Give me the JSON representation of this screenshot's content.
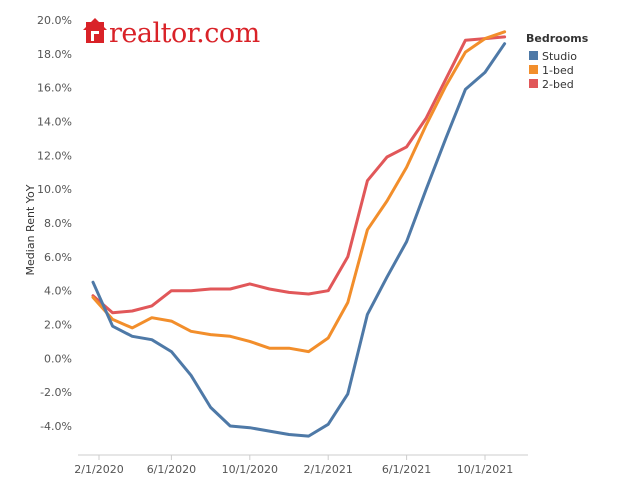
{
  "logo": {
    "text": "realtor.com",
    "color": "#d92228"
  },
  "chart_data": {
    "type": "line",
    "title": "",
    "xlabel": "",
    "ylabel": "Median Rent YoY",
    "x": [
      "2020-02-01",
      "2020-03-01",
      "2020-04-01",
      "2020-05-01",
      "2020-06-01",
      "2020-07-01",
      "2020-08-01",
      "2020-09-01",
      "2020-10-01",
      "2020-11-01",
      "2020-12-01",
      "2021-01-01",
      "2021-02-01",
      "2021-03-01",
      "2021-04-01",
      "2021-05-01",
      "2021-06-01",
      "2021-07-01",
      "2021-08-01",
      "2021-09-01",
      "2021-10-01",
      "2021-11-01",
      "2021-12-01"
    ],
    "x_ticks": [
      "2/1/2020",
      "6/1/2020",
      "10/1/2020",
      "2/1/2021",
      "6/1/2021",
      "10/1/2021"
    ],
    "y_ticks": [
      "-4.0%",
      "-2.0%",
      "0.0%",
      "2.0%",
      "4.0%",
      "6.0%",
      "8.0%",
      "10.0%",
      "12.0%",
      "14.0%",
      "16.0%",
      "18.0%",
      "20.0%"
    ],
    "ylim": [
      -4.8,
      20.3
    ],
    "y_unit": "%",
    "grid": false,
    "legend": {
      "title": "Bedrooms",
      "placement": "top-right"
    },
    "series": [
      {
        "name": "Studio",
        "color": "#4e79a7",
        "values": [
          4.5,
          1.9,
          1.3,
          1.1,
          0.4,
          -1.0,
          -2.9,
          -4.0,
          -4.1,
          -4.3,
          -4.5,
          -4.6,
          -3.9,
          -2.1,
          2.6,
          4.8,
          6.9,
          10.0,
          13.0,
          15.9,
          16.9,
          18.6,
          null
        ]
      },
      {
        "name": "1-bed",
        "color": "#f28e2b",
        "values": [
          3.6,
          2.3,
          1.8,
          2.4,
          2.2,
          1.6,
          1.4,
          1.3,
          1.0,
          0.6,
          0.6,
          0.4,
          1.2,
          3.3,
          7.6,
          9.3,
          11.3,
          13.8,
          16.1,
          18.1,
          18.9,
          19.3,
          null
        ]
      },
      {
        "name": "2-bed",
        "color": "#e15759",
        "values": [
          3.7,
          2.7,
          2.8,
          3.1,
          4.0,
          4.0,
          4.1,
          4.1,
          4.4,
          4.1,
          3.9,
          3.8,
          4.0,
          6.0,
          10.5,
          11.9,
          12.5,
          14.2,
          16.5,
          18.8,
          18.9,
          19.0,
          null
        ]
      }
    ]
  }
}
